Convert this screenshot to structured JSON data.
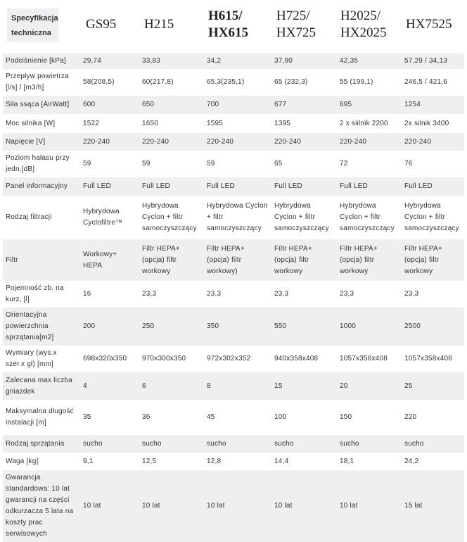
{
  "header": {
    "spec_label": "Specyfikacja techniczna",
    "models": [
      "GS95",
      "H215",
      "H615/ HX615",
      "H725/ HX725",
      "H2025/ HX2025",
      "HX7525"
    ]
  },
  "rows": [
    {
      "label": "Podciśnienie [kPa]",
      "values": [
        "29,74",
        "33,83",
        "34,2",
        "37,90",
        "42,35",
        "57,29 / 34,13"
      ]
    },
    {
      "label": "Przepływ powietrza [l/s] / [m3/h]",
      "values": [
        "58(208,5)",
        "60(217,8)",
        "65,3(235,1)",
        "65 (232,3)",
        "55 (199,1)",
        "246,5 / 421,6"
      ]
    },
    {
      "label": "Siła ssąca [AirWatt]",
      "values": [
        "600",
        "650",
        "700",
        "677",
        "695",
        "1254"
      ]
    },
    {
      "label": "Moc silnika [W]",
      "values": [
        "1522",
        "1650",
        "1595",
        "1395",
        "2 x siilnik 2200",
        "2x silnik 3400"
      ]
    },
    {
      "label": "Napięcie [V]",
      "values": [
        "220-240",
        "220-240",
        "220-240",
        "220-240",
        "220-240",
        "220-240"
      ]
    },
    {
      "label": "Poziom hałasu przy jedn.[dB]",
      "values": [
        "59",
        "59",
        "59",
        "65",
        "72",
        "76"
      ]
    },
    {
      "label": "Panel informacyjny",
      "values": [
        "Full LED",
        "Full LED",
        "Full LED",
        "Full LED",
        "Full LED",
        "Full LED"
      ]
    },
    {
      "label": "Rodzaj filtracji",
      "values": [
        "Hybrydowa Cyclofiltre™",
        "Hybrydowa Cyclon + filtr samoczyszczący",
        "Hybrydowa Cyclon + filtr samoczyszczący",
        "Hybrydowa Cyclon + filtr samoczyszczący",
        "Hybrydowa Cyclon + filtr samoczyszczący",
        "Hybrydowa Cyclon + filtr samoczyszczący"
      ]
    },
    {
      "label": "Filtr",
      "values": [
        "Workowy+ HEPA",
        "Filtr HEPA+ (opcja) filtr workowy",
        "Filtr HEPA+ (opcja) filtr workowy)",
        "Filtr HEPA+ (opcja) filtr workowy",
        "Filtr HEPA+ (opcja) filtr workowy",
        "Filtr HEPA+ (opcja) filtr workowy"
      ]
    },
    {
      "label": "Pojemność zb. na kurz, [l]",
      "values": [
        "16",
        "23,3",
        "23,3",
        "23,3",
        "23,3",
        "23,3"
      ]
    },
    {
      "label": "Orientacyjna powierzchnia sprzątania[m2]",
      "values": [
        "200",
        "250",
        "350",
        "550",
        "1000",
        "2500"
      ]
    },
    {
      "label": "Wymiary (wys.x szer.x gł) [mm]",
      "values": [
        "698x320x350",
        "970x300x350",
        "972x302x352",
        "940x358x408",
        "1057x358x408",
        "1057x358x408"
      ]
    },
    {
      "label": "Zalecana max liczba gniazdek",
      "values": [
        "4",
        "6",
        "8",
        "15",
        "20",
        "25"
      ]
    },
    {
      "label": "Maksymalna długość instalacji [m]",
      "values": [
        "35",
        "36",
        "45",
        "100",
        "150",
        "220"
      ]
    },
    {
      "label": "Rodzaj sprzątania",
      "values": [
        "sucho",
        "sucho",
        "sucho",
        "sucho",
        "sucho",
        "sucho"
      ]
    },
    {
      "label": "Waga [kg]",
      "values": [
        "9,1",
        "12,5",
        "12,8",
        "14,4",
        "18,1",
        "24,2"
      ]
    },
    {
      "label": "Gwarancja standardowa: 10 lat gwarancji na części odkurzacza 5 lata na koszty prac serwisowych",
      "values": [
        "10 lat",
        "10 lat",
        "10 lat",
        "10 lat",
        "10 lat",
        "15 lat"
      ]
    }
  ]
}
